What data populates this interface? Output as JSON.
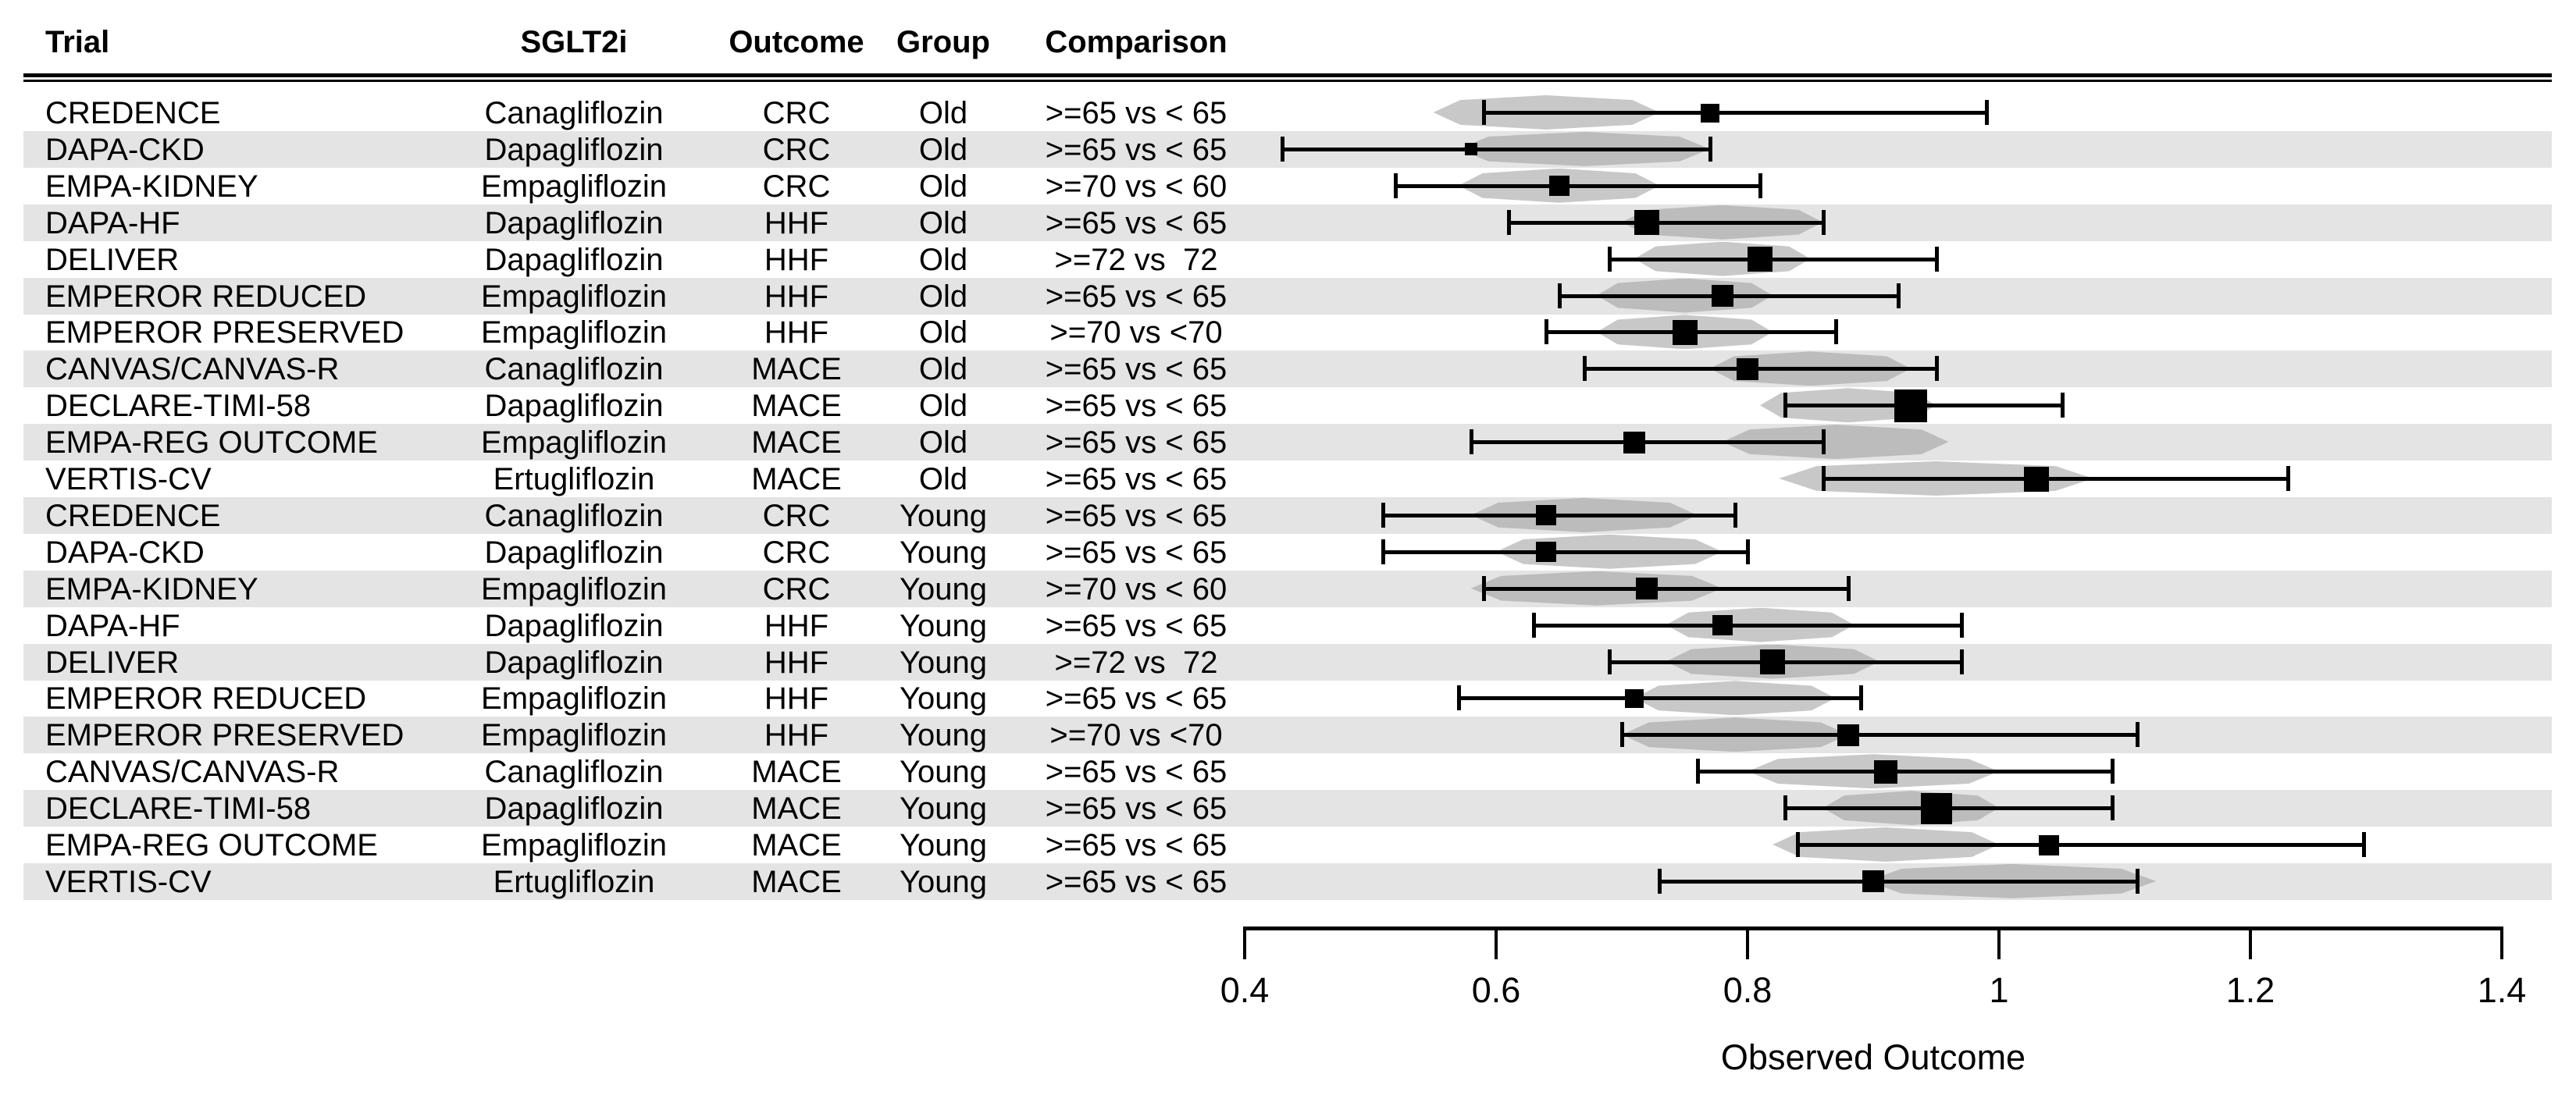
{
  "headers": {
    "trial": "Trial",
    "sglt2i": "SGLT2i",
    "outcome": "Outcome",
    "group": "Group",
    "comparison": "Comparison"
  },
  "chart_data": {
    "type": "forest",
    "xlabel": "Observed Outcome",
    "axis": {
      "xlim": [
        0.4,
        1.4
      ],
      "ticks": [
        0.4,
        0.6,
        0.8,
        1.0,
        1.2,
        1.4
      ],
      "tick_labels": [
        "0.4",
        "0.6",
        "0.8",
        "1",
        "1.2",
        "1.4"
      ]
    },
    "colors": {
      "band": "#e4e4e4",
      "marker": "#000000",
      "density": "#9b9b9b"
    },
    "rows": [
      {
        "trial": "CREDENCE",
        "sglt2i": "Canagliflozin",
        "outcome": "CRC",
        "group": "Old",
        "comparison": ">=65 vs < 65",
        "est": 0.77,
        "lcl": 0.59,
        "ucl": 0.99,
        "density_center": 0.64,
        "density_halfwidth": 0.09,
        "marker_px": 24
      },
      {
        "trial": "DAPA-CKD",
        "sglt2i": "Dapagliflozin",
        "outcome": "CRC",
        "group": "Old",
        "comparison": ">=65 vs < 65",
        "est": 0.58,
        "lcl": 0.43,
        "ucl": 0.77,
        "density_center": 0.67,
        "density_halfwidth": 0.1,
        "marker_px": 16
      },
      {
        "trial": "EMPA-KIDNEY",
        "sglt2i": "Empagliflozin",
        "outcome": "CRC",
        "group": "Old",
        "comparison": ">=70 vs < 60",
        "est": 0.65,
        "lcl": 0.52,
        "ucl": 0.81,
        "density_center": 0.65,
        "density_halfwidth": 0.08,
        "marker_px": 26
      },
      {
        "trial": "DAPA-HF",
        "sglt2i": "Dapagliflozin",
        "outcome": "HHF",
        "group": "Old",
        "comparison": ">=65 vs < 65",
        "est": 0.72,
        "lcl": 0.61,
        "ucl": 0.86,
        "density_center": 0.78,
        "density_halfwidth": 0.08,
        "marker_px": 32
      },
      {
        "trial": "DELIVER",
        "sglt2i": "Dapagliflozin",
        "outcome": "HHF",
        "group": "Old",
        "comparison": ">=72 vs  72",
        "est": 0.81,
        "lcl": 0.69,
        "ucl": 0.95,
        "density_center": 0.78,
        "density_halfwidth": 0.07,
        "marker_px": 32
      },
      {
        "trial": "EMPEROR REDUCED",
        "sglt2i": "Empagliflozin",
        "outcome": "HHF",
        "group": "Old",
        "comparison": ">=65 vs < 65",
        "est": 0.78,
        "lcl": 0.65,
        "ucl": 0.92,
        "density_center": 0.75,
        "density_halfwidth": 0.07,
        "marker_px": 28
      },
      {
        "trial": "EMPEROR PRESERVED",
        "sglt2i": "Empagliflozin",
        "outcome": "HHF",
        "group": "Old",
        "comparison": ">=70 vs <70",
        "est": 0.75,
        "lcl": 0.64,
        "ucl": 0.87,
        "density_center": 0.75,
        "density_halfwidth": 0.07,
        "marker_px": 32
      },
      {
        "trial": "CANVAS/CANVAS-R",
        "sglt2i": "Canagliflozin",
        "outcome": "MACE",
        "group": "Old",
        "comparison": ">=65 vs < 65",
        "est": 0.8,
        "lcl": 0.67,
        "ucl": 0.95,
        "density_center": 0.85,
        "density_halfwidth": 0.08,
        "marker_px": 28
      },
      {
        "trial": "DECLARE-TIMI-58",
        "sglt2i": "Dapagliflozin",
        "outcome": "MACE",
        "group": "Old",
        "comparison": ">=65 vs < 65",
        "est": 0.93,
        "lcl": 0.83,
        "ucl": 1.05,
        "density_center": 0.88,
        "density_halfwidth": 0.07,
        "marker_px": 42
      },
      {
        "trial": "EMPA-REG OUTCOME",
        "sglt2i": "Empagliflozin",
        "outcome": "MACE",
        "group": "Old",
        "comparison": ">=65 vs < 65",
        "est": 0.71,
        "lcl": 0.58,
        "ucl": 0.86,
        "density_center": 0.87,
        "density_halfwidth": 0.09,
        "marker_px": 28
      },
      {
        "trial": "VERTIS-CV",
        "sglt2i": "Ertugliflozin",
        "outcome": "MACE",
        "group": "Old",
        "comparison": ">=65 vs < 65",
        "est": 1.03,
        "lcl": 0.86,
        "ucl": 1.23,
        "density_center": 0.95,
        "density_halfwidth": 0.125,
        "marker_px": 32
      },
      {
        "trial": "CREDENCE",
        "sglt2i": "Canagliflozin",
        "outcome": "CRC",
        "group": "Young",
        "comparison": ">=65 vs < 65",
        "est": 0.64,
        "lcl": 0.51,
        "ucl": 0.79,
        "density_center": 0.67,
        "density_halfwidth": 0.09,
        "marker_px": 26
      },
      {
        "trial": "DAPA-CKD",
        "sglt2i": "Dapagliflozin",
        "outcome": "CRC",
        "group": "Young",
        "comparison": ">=65 vs < 65",
        "est": 0.64,
        "lcl": 0.51,
        "ucl": 0.8,
        "density_center": 0.69,
        "density_halfwidth": 0.09,
        "marker_px": 26
      },
      {
        "trial": "EMPA-KIDNEY",
        "sglt2i": "Empagliflozin",
        "outcome": "CRC",
        "group": "Young",
        "comparison": ">=70 vs < 60",
        "est": 0.72,
        "lcl": 0.59,
        "ucl": 0.88,
        "density_center": 0.68,
        "density_halfwidth": 0.1,
        "marker_px": 28
      },
      {
        "trial": "DAPA-HF",
        "sglt2i": "Dapagliflozin",
        "outcome": "HHF",
        "group": "Young",
        "comparison": ">=65 vs < 65",
        "est": 0.78,
        "lcl": 0.63,
        "ucl": 0.97,
        "density_center": 0.81,
        "density_halfwidth": 0.075,
        "marker_px": 26
      },
      {
        "trial": "DELIVER",
        "sglt2i": "Dapagliflozin",
        "outcome": "HHF",
        "group": "Young",
        "comparison": ">=72 vs  72",
        "est": 0.82,
        "lcl": 0.69,
        "ucl": 0.97,
        "density_center": 0.82,
        "density_halfwidth": 0.085,
        "marker_px": 32
      },
      {
        "trial": "EMPEROR REDUCED",
        "sglt2i": "Empagliflozin",
        "outcome": "HHF",
        "group": "Young",
        "comparison": ">=65 vs < 65",
        "est": 0.71,
        "lcl": 0.57,
        "ucl": 0.89,
        "density_center": 0.79,
        "density_halfwidth": 0.08,
        "marker_px": 24
      },
      {
        "trial": "EMPEROR PRESERVED",
        "sglt2i": "Empagliflozin",
        "outcome": "HHF",
        "group": "Young",
        "comparison": ">=70 vs <70",
        "est": 0.88,
        "lcl": 0.7,
        "ucl": 1.11,
        "density_center": 0.79,
        "density_halfwidth": 0.09,
        "marker_px": 28
      },
      {
        "trial": "CANVAS/CANVAS-R",
        "sglt2i": "Canagliflozin",
        "outcome": "MACE",
        "group": "Young",
        "comparison": ">=65 vs < 65",
        "est": 0.91,
        "lcl": 0.76,
        "ucl": 1.09,
        "density_center": 0.9,
        "density_halfwidth": 0.1,
        "marker_px": 30
      },
      {
        "trial": "DECLARE-TIMI-58",
        "sglt2i": "Dapagliflozin",
        "outcome": "MACE",
        "group": "Young",
        "comparison": ">=65 vs < 65",
        "est": 0.95,
        "lcl": 0.83,
        "ucl": 1.09,
        "density_center": 0.93,
        "density_halfwidth": 0.07,
        "marker_px": 40
      },
      {
        "trial": "EMPA-REG OUTCOME",
        "sglt2i": "Empagliflozin",
        "outcome": "MACE",
        "group": "Young",
        "comparison": ">=65 vs < 65",
        "est": 1.04,
        "lcl": 0.84,
        "ucl": 1.29,
        "density_center": 0.91,
        "density_halfwidth": 0.09,
        "marker_px": 26
      },
      {
        "trial": "VERTIS-CV",
        "sglt2i": "Ertugliflozin",
        "outcome": "MACE",
        "group": "Young",
        "comparison": ">=65 vs < 65",
        "est": 0.9,
        "lcl": 0.73,
        "ucl": 1.11,
        "density_center": 1.01,
        "density_halfwidth": 0.115,
        "marker_px": 28
      }
    ]
  }
}
